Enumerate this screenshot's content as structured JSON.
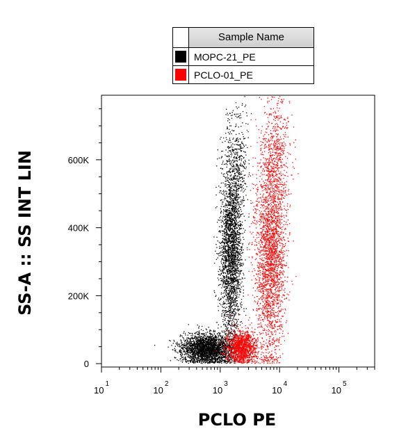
{
  "chart_data": {
    "type": "scatter",
    "xlabel": "PCLO PE",
    "ylabel": "SS-A :: SS INT LIN",
    "x_scale": "log",
    "xlim": [
      10,
      400000
    ],
    "ylim": [
      -10000,
      790000
    ],
    "x_ticks": [
      {
        "base": "10",
        "exp": "1",
        "value": 10
      },
      {
        "base": "10",
        "exp": "2",
        "value": 100
      },
      {
        "base": "10",
        "exp": "3",
        "value": 1000
      },
      {
        "base": "10",
        "exp": "4",
        "value": 10000
      },
      {
        "base": "10",
        "exp": "5",
        "value": 100000
      }
    ],
    "y_ticks": [
      {
        "label": "0",
        "value": 0
      },
      {
        "label": "200K",
        "value": 200000
      },
      {
        "label": "400K",
        "value": 400000
      },
      {
        "label": "600K",
        "value": 600000
      }
    ],
    "legend": {
      "title": "Sample Name",
      "position": "top-center, above plot"
    },
    "series": [
      {
        "name": "MOPC-21_PE",
        "color": "#000000",
        "clusters": [
          {
            "x_center": 600,
            "x_log_sd": 0.22,
            "y_center": 45000,
            "y_sd": 22000,
            "n": 2600
          },
          {
            "x_center": 1500,
            "x_log_sd": 0.09,
            "y_center": 330000,
            "y_sd": 140000,
            "n": 2600
          },
          {
            "x_center": 1900,
            "x_log_sd": 0.1,
            "y_center": 600000,
            "y_sd": 90000,
            "n": 350
          }
        ]
      },
      {
        "name": "PCLO-01_PE",
        "color": "#ff0000",
        "clusters": [
          {
            "x_center": 2300,
            "x_log_sd": 0.13,
            "y_center": 50000,
            "y_sd": 25000,
            "n": 1300
          },
          {
            "x_center": 7000,
            "x_log_sd": 0.13,
            "y_center": 330000,
            "y_sd": 160000,
            "n": 2600
          },
          {
            "x_center": 9000,
            "x_log_sd": 0.12,
            "y_center": 640000,
            "y_sd": 90000,
            "n": 400
          }
        ]
      }
    ]
  }
}
